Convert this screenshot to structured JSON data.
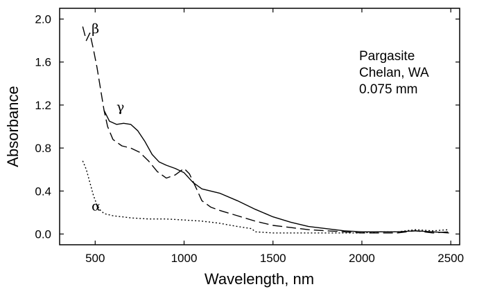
{
  "chart_data": {
    "type": "line",
    "title": "",
    "xlabel": "Wavelength, nm",
    "ylabel": "Absorbance",
    "xlim": [
      300,
      2550
    ],
    "ylim": [
      -0.1,
      2.1
    ],
    "xticks": [
      500,
      1000,
      1500,
      2000,
      2500
    ],
    "yticks": [
      0.0,
      0.4,
      0.8,
      1.2,
      1.6,
      2.0
    ],
    "xtick_labels": [
      "500",
      "1000",
      "1500",
      "2000",
      "2500"
    ],
    "ytick_labels": [
      "0.0",
      "0.4",
      "0.8",
      "1.2",
      "1.6",
      "2.0"
    ],
    "grid": false,
    "annotation_lines": [
      "Pargasite",
      "Chelan, WA",
      "0.075 mm"
    ],
    "series": [
      {
        "name": "β",
        "label_at": [
          480,
          1.87
        ],
        "dash": "long-dash",
        "points": [
          [
            430,
            1.93
          ],
          [
            450,
            1.8
          ],
          [
            470,
            1.87
          ],
          [
            490,
            1.72
          ],
          [
            510,
            1.55
          ],
          [
            530,
            1.35
          ],
          [
            550,
            1.15
          ],
          [
            570,
            1.0
          ],
          [
            600,
            0.88
          ],
          [
            650,
            0.82
          ],
          [
            700,
            0.8
          ],
          [
            750,
            0.76
          ],
          [
            800,
            0.68
          ],
          [
            850,
            0.58
          ],
          [
            900,
            0.52
          ],
          [
            950,
            0.55
          ],
          [
            1000,
            0.61
          ],
          [
            1030,
            0.56
          ],
          [
            1070,
            0.42
          ],
          [
            1100,
            0.31
          ],
          [
            1150,
            0.25
          ],
          [
            1200,
            0.22
          ],
          [
            1300,
            0.17
          ],
          [
            1400,
            0.12
          ],
          [
            1500,
            0.08
          ],
          [
            1600,
            0.06
          ],
          [
            1700,
            0.04
          ],
          [
            1800,
            0.03
          ],
          [
            1900,
            0.02
          ],
          [
            2000,
            0.01
          ],
          [
            2100,
            0.01
          ],
          [
            2200,
            0.01
          ],
          [
            2300,
            0.03
          ],
          [
            2400,
            0.01
          ],
          [
            2490,
            0.02
          ]
        ]
      },
      {
        "name": "γ",
        "label_at": [
          620,
          1.14
        ],
        "dash": "solid",
        "points": [
          [
            550,
            1.15
          ],
          [
            580,
            1.05
          ],
          [
            620,
            1.02
          ],
          [
            660,
            1.03
          ],
          [
            700,
            1.02
          ],
          [
            740,
            0.96
          ],
          [
            780,
            0.86
          ],
          [
            820,
            0.74
          ],
          [
            860,
            0.67
          ],
          [
            900,
            0.64
          ],
          [
            950,
            0.61
          ],
          [
            1000,
            0.57
          ],
          [
            1050,
            0.48
          ],
          [
            1100,
            0.42
          ],
          [
            1150,
            0.4
          ],
          [
            1200,
            0.38
          ],
          [
            1300,
            0.31
          ],
          [
            1400,
            0.23
          ],
          [
            1500,
            0.16
          ],
          [
            1600,
            0.11
          ],
          [
            1700,
            0.07
          ],
          [
            1800,
            0.05
          ],
          [
            1900,
            0.03
          ],
          [
            2000,
            0.02
          ],
          [
            2100,
            0.02
          ],
          [
            2200,
            0.02
          ],
          [
            2300,
            0.03
          ],
          [
            2400,
            0.02
          ],
          [
            2490,
            0.01
          ]
        ]
      },
      {
        "name": "α",
        "label_at": [
          480,
          0.22
        ],
        "dash": "dotted",
        "points": [
          [
            430,
            0.68
          ],
          [
            450,
            0.6
          ],
          [
            470,
            0.48
          ],
          [
            490,
            0.36
          ],
          [
            510,
            0.27
          ],
          [
            530,
            0.22
          ],
          [
            550,
            0.19
          ],
          [
            600,
            0.17
          ],
          [
            700,
            0.15
          ],
          [
            800,
            0.14
          ],
          [
            900,
            0.14
          ],
          [
            1000,
            0.13
          ],
          [
            1100,
            0.12
          ],
          [
            1200,
            0.1
          ],
          [
            1300,
            0.07
          ],
          [
            1380,
            0.05
          ],
          [
            1400,
            0.02
          ],
          [
            1500,
            0.01
          ],
          [
            1700,
            0.01
          ],
          [
            1900,
            0.01
          ],
          [
            2000,
            0.01
          ],
          [
            2100,
            0.02
          ],
          [
            2200,
            0.02
          ],
          [
            2300,
            0.04
          ],
          [
            2400,
            0.03
          ],
          [
            2490,
            0.04
          ]
        ]
      }
    ]
  }
}
